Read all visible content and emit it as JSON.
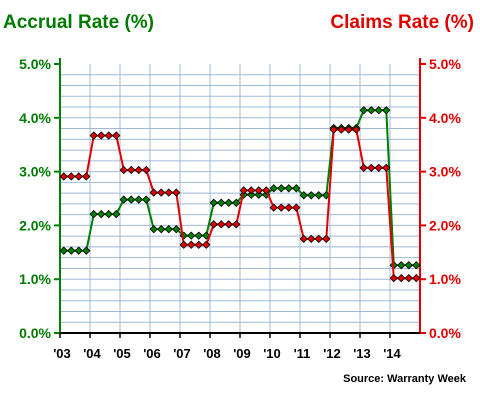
{
  "chart_data": {
    "type": "line",
    "left_axis_title": "Accrual Rate (%)",
    "right_axis_title": "Claims Rate (%)",
    "source": "Source: Warranty Week",
    "x_labels": [
      "'03",
      "'04",
      "'05",
      "'06",
      "'07",
      "'08",
      "'09",
      "'10",
      "'11",
      "'12",
      "'13",
      "'14"
    ],
    "ylim": [
      0,
      5
    ],
    "y_ticks_left": [
      "0.0%",
      "1.0%",
      "2.0%",
      "3.0%",
      "4.0%",
      "5.0%"
    ],
    "y_ticks_right": [
      "0.0%",
      "1.0%",
      "2.0%",
      "3.0%",
      "4.0%",
      "5.0%"
    ],
    "grid": true,
    "colors": {
      "accrual": "#008000",
      "claims": "#e00000",
      "grid": "#9fb8d8"
    },
    "x": [
      "Q1-03",
      "Q2-03",
      "Q3-03",
      "Q4-03",
      "Q1-04",
      "Q2-04",
      "Q3-04",
      "Q4-04",
      "Q1-05",
      "Q2-05",
      "Q3-05",
      "Q4-05",
      "Q1-06",
      "Q2-06",
      "Q3-06",
      "Q4-06",
      "Q1-07",
      "Q2-07",
      "Q3-07",
      "Q4-07",
      "Q1-08",
      "Q2-08",
      "Q3-08",
      "Q4-08",
      "Q1-09",
      "Q2-09",
      "Q3-09",
      "Q4-09",
      "Q1-10",
      "Q2-10",
      "Q3-10",
      "Q4-10",
      "Q1-11",
      "Q2-11",
      "Q3-11",
      "Q4-11",
      "Q1-12",
      "Q2-12",
      "Q3-12",
      "Q4-12",
      "Q1-13",
      "Q2-13",
      "Q3-13",
      "Q4-13",
      "Q1-14",
      "Q2-14",
      "Q3-14",
      "Q4-14"
    ],
    "series": [
      {
        "key": "accrual",
        "axis": "left",
        "values": [
          1.53,
          1.53,
          1.53,
          1.53,
          2.21,
          2.21,
          2.21,
          2.21,
          2.48,
          2.48,
          2.48,
          2.48,
          1.93,
          1.93,
          1.93,
          1.93,
          1.81,
          1.81,
          1.81,
          1.81,
          2.42,
          2.42,
          2.42,
          2.42,
          2.57,
          2.57,
          2.57,
          2.57,
          2.69,
          2.69,
          2.69,
          2.69,
          2.56,
          2.56,
          2.56,
          2.56,
          3.81,
          3.81,
          3.81,
          3.81,
          4.14,
          4.14,
          4.14,
          4.14,
          1.26,
          1.26,
          1.26,
          1.26
        ]
      },
      {
        "key": "claims",
        "axis": "right",
        "values": [
          2.91,
          2.91,
          2.91,
          2.91,
          3.67,
          3.67,
          3.67,
          3.67,
          3.03,
          3.03,
          3.03,
          3.03,
          2.61,
          2.61,
          2.61,
          2.61,
          1.64,
          1.64,
          1.64,
          1.64,
          2.02,
          2.02,
          2.02,
          2.02,
          2.65,
          2.65,
          2.65,
          2.65,
          2.33,
          2.33,
          2.33,
          2.33,
          1.75,
          1.75,
          1.75,
          1.75,
          3.78,
          3.78,
          3.78,
          3.78,
          3.07,
          3.07,
          3.07,
          3.07,
          1.02,
          1.02,
          1.02,
          1.02
        ]
      }
    ]
  }
}
